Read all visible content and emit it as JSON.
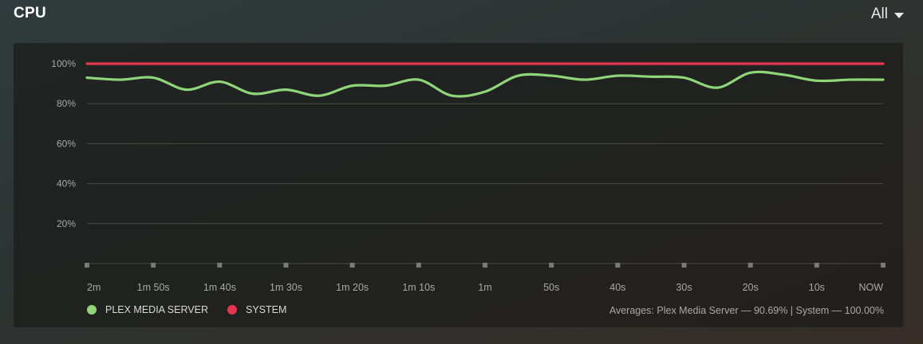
{
  "header": {
    "title": "CPU",
    "range_label": "All"
  },
  "legend": [
    {
      "label": "PLEX MEDIA SERVER",
      "color": "#8fd67a"
    },
    {
      "label": "SYSTEM",
      "color": "#e5354f"
    }
  ],
  "averages_text": "Averages: Plex Media Server — 90.69% | System — 100.00%",
  "chart_data": {
    "type": "line",
    "title": "CPU",
    "xlabel": "",
    "ylabel": "",
    "ylim": [
      0,
      100
    ],
    "grid": true,
    "y_ticks": [
      "100%",
      "80%",
      "60%",
      "40%",
      "20%"
    ],
    "y_tick_values": [
      100,
      80,
      60,
      40,
      20
    ],
    "categories": [
      "2m",
      "1m 50s",
      "1m 40s",
      "1m 30s",
      "1m 20s",
      "1m 10s",
      "1m",
      "50s",
      "40s",
      "30s",
      "20s",
      "10s",
      "NOW"
    ],
    "x": [
      0,
      5,
      10,
      15,
      20,
      25,
      30,
      35,
      40,
      45,
      50,
      55,
      60,
      65,
      70,
      75,
      80,
      85,
      90,
      95,
      100,
      105,
      110,
      115,
      120
    ],
    "series": [
      {
        "name": "PLEX MEDIA SERVER",
        "color": "#8fd67a",
        "values": [
          93,
          92,
          93,
          87,
          91,
          85,
          87,
          84,
          89,
          89,
          92,
          84,
          86,
          94,
          94,
          92,
          94,
          93.5,
          93,
          88,
          95.5,
          94.5,
          91.5,
          92,
          92
        ]
      },
      {
        "name": "SYSTEM",
        "color": "#e5354f",
        "values": [
          100,
          100,
          100,
          100,
          100,
          100,
          100,
          100,
          100,
          100,
          100,
          100,
          100,
          100,
          100,
          100,
          100,
          100,
          100,
          100,
          100,
          100,
          100,
          100,
          100
        ]
      }
    ]
  }
}
